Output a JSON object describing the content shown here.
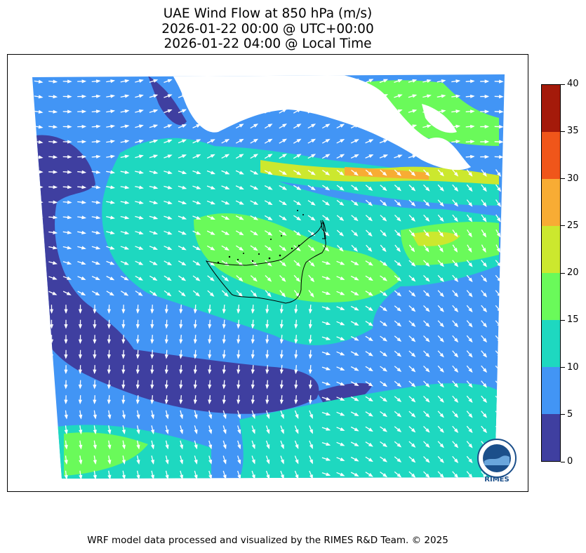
{
  "title": {
    "line1": "UAE Wind Flow at 850 hPa (m/s)",
    "line2": "2026-01-22 00:00 @ UTC+00:00",
    "line3": "2026-01-22 04:00 @ Local Time"
  },
  "colorbar": {
    "levels": [
      0,
      5,
      10,
      15,
      20,
      25,
      30,
      35,
      40
    ],
    "labels": [
      "0",
      "5",
      "10",
      "15",
      "20",
      "25",
      "30",
      "35",
      "40"
    ],
    "colors": [
      "#3f3fa0",
      "#4295f5",
      "#1ed8c0",
      "#6afa5a",
      "#cce82e",
      "#f8ac34",
      "#f0561a",
      "#a41a0a"
    ]
  },
  "map": {
    "background_color": "#4295f5",
    "land_mask_color": "#ffffff",
    "arrow_color": "#ffffff",
    "border_color": "#000000"
  },
  "logo": {
    "text": "RIMES"
  },
  "footer": "WRF model data processed and visualized by the RIMES R&D Team. © 2025"
}
